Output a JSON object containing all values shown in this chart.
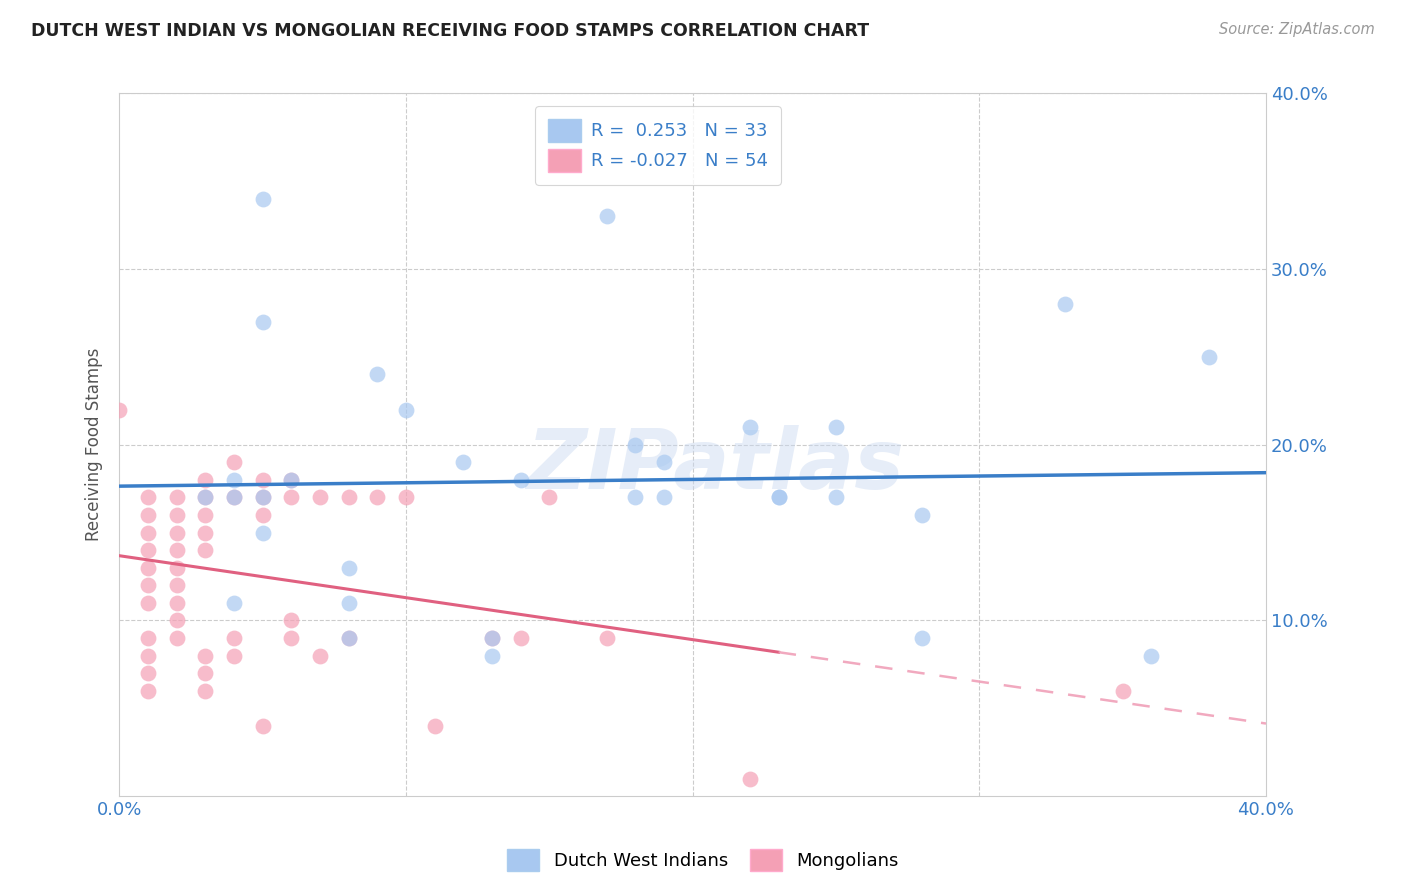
{
  "title": "DUTCH WEST INDIAN VS MONGOLIAN RECEIVING FOOD STAMPS CORRELATION CHART",
  "source": "Source: ZipAtlas.com",
  "ylabel": "Receiving Food Stamps",
  "xlim": [
    0.0,
    0.4
  ],
  "ylim": [
    0.0,
    0.4
  ],
  "blue_R": 0.253,
  "blue_N": 33,
  "pink_R": -0.027,
  "pink_N": 54,
  "blue_color": "#A8C8F0",
  "pink_color": "#F4A0B5",
  "blue_line_color": "#3A7EC8",
  "pink_line_color": "#E06080",
  "pink_dashed_color": "#F0A0B8",
  "background_color": "#FFFFFF",
  "grid_color": "#CCCCCC",
  "watermark": "ZIPatlas",
  "blue_points_x": [
    0.05,
    0.09,
    0.17,
    0.03,
    0.04,
    0.04,
    0.05,
    0.06,
    0.05,
    0.04,
    0.08,
    0.12,
    0.19,
    0.19,
    0.22,
    0.14,
    0.18,
    0.1,
    0.08,
    0.08,
    0.23,
    0.23,
    0.28,
    0.28,
    0.33,
    0.18,
    0.13,
    0.13,
    0.05,
    0.25,
    0.36,
    0.38,
    0.25
  ],
  "blue_points_y": [
    0.27,
    0.24,
    0.33,
    0.17,
    0.17,
    0.18,
    0.17,
    0.18,
    0.15,
    0.11,
    0.13,
    0.19,
    0.17,
    0.19,
    0.21,
    0.18,
    0.17,
    0.22,
    0.11,
    0.09,
    0.17,
    0.17,
    0.16,
    0.09,
    0.28,
    0.2,
    0.09,
    0.08,
    0.34,
    0.21,
    0.08,
    0.25,
    0.17
  ],
  "pink_points_x": [
    0.0,
    0.01,
    0.01,
    0.01,
    0.01,
    0.01,
    0.01,
    0.01,
    0.01,
    0.01,
    0.01,
    0.01,
    0.02,
    0.02,
    0.02,
    0.02,
    0.02,
    0.02,
    0.02,
    0.02,
    0.02,
    0.03,
    0.03,
    0.03,
    0.03,
    0.03,
    0.03,
    0.03,
    0.03,
    0.04,
    0.04,
    0.04,
    0.04,
    0.05,
    0.05,
    0.05,
    0.05,
    0.06,
    0.06,
    0.06,
    0.06,
    0.07,
    0.07,
    0.08,
    0.08,
    0.09,
    0.1,
    0.11,
    0.13,
    0.14,
    0.15,
    0.17,
    0.22,
    0.35
  ],
  "pink_points_y": [
    0.22,
    0.17,
    0.16,
    0.15,
    0.14,
    0.13,
    0.12,
    0.11,
    0.09,
    0.08,
    0.07,
    0.06,
    0.17,
    0.16,
    0.15,
    0.14,
    0.13,
    0.12,
    0.11,
    0.1,
    0.09,
    0.18,
    0.17,
    0.16,
    0.15,
    0.14,
    0.08,
    0.07,
    0.06,
    0.19,
    0.17,
    0.09,
    0.08,
    0.18,
    0.17,
    0.16,
    0.04,
    0.18,
    0.17,
    0.1,
    0.09,
    0.17,
    0.08,
    0.17,
    0.09,
    0.17,
    0.17,
    0.04,
    0.09,
    0.09,
    0.17,
    0.09,
    0.01,
    0.06
  ],
  "legend_text_color": "#3A7EC8",
  "legend_text_dark": "#222222",
  "tick_color": "#3A7EC8",
  "ylabel_color": "#555555",
  "title_color": "#222222",
  "source_color": "#999999"
}
